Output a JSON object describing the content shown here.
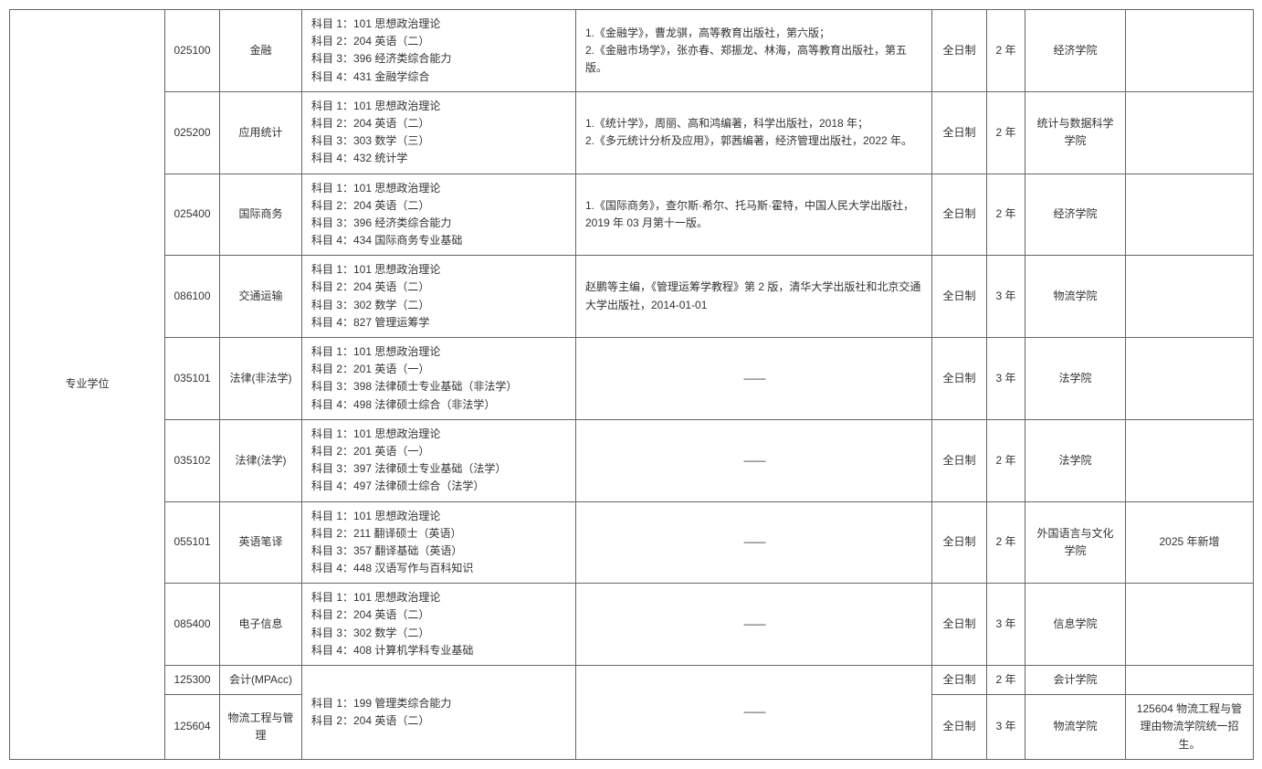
{
  "category_label": "专业学位",
  "rows": [
    {
      "code": "025100",
      "name": "金融",
      "subj1": "科目 1：101 思想政治理论",
      "subj2": "科目 2：204 英语（二）",
      "subj3": "科目 3：396 经济类综合能力",
      "subj4": "科目 4：431 金融学综合",
      "refs": "1.《金融学》，曹龙骐，高等教育出版社，第六版；\n2.《金融市场学》，张亦春、郑振龙、林海，高等教育出版社，第五版。",
      "refs_center": false,
      "mode": "全日制",
      "duration": "2 年",
      "dept": "经济学院",
      "note": ""
    },
    {
      "code": "025200",
      "name": "应用统计",
      "subj1": "科目 1：101 思想政治理论",
      "subj2": "科目 2：204 英语（二）",
      "subj3": "科目 3：303 数学（三）",
      "subj4": "科目 4：432 统计学",
      "refs": "1.《统计学》，周丽、高和鸿编著，科学出版社，2018 年；\n2.《多元统计分析及应用》，郭茜编著，经济管理出版社，2022 年。",
      "refs_center": false,
      "mode": "全日制",
      "duration": "2 年",
      "dept": "统计与数据科学学院",
      "note": ""
    },
    {
      "code": "025400",
      "name": "国际商务",
      "subj1": "科目 1：101 思想政治理论",
      "subj2": "科目 2：204 英语（二）",
      "subj3": "科目 3：396 经济类综合能力",
      "subj4": "科目 4：434 国际商务专业基础",
      "refs": "1.《国际商务》，查尔斯·希尔、托马斯·霍特，中国人民大学出版社，2019 年 03 月第十一版。",
      "refs_center": false,
      "mode": "全日制",
      "duration": "2 年",
      "dept": "经济学院",
      "note": ""
    },
    {
      "code": "086100",
      "name": "交通运输",
      "subj1": "科目 1：101 思想政治理论",
      "subj2": "科目 2：204 英语（二）",
      "subj3": "科目 3：302 数学（二）",
      "subj4": "科目 4：827 管理运筹学",
      "refs": "赵鹏等主编，《管理运筹学教程》第 2 版，清华大学出版社和北京交通大学出版社，2014-01-01",
      "refs_center": false,
      "mode": "全日制",
      "duration": "3 年",
      "dept": "物流学院",
      "note": ""
    },
    {
      "code": "035101",
      "name": "法律(非法学)",
      "subj1": "科目 1：101 思想政治理论",
      "subj2": "科目 2：201 英语（一）",
      "subj3": "科目 3：398 法律硕士专业基础（非法学）",
      "subj4": "科目 4：498 法律硕士综合（非法学）",
      "refs": "——",
      "refs_center": true,
      "mode": "全日制",
      "duration": "3 年",
      "dept": "法学院",
      "note": ""
    },
    {
      "code": "035102",
      "name": "法律(法学)",
      "subj1": "科目 1：101 思想政治理论",
      "subj2": "科目 2：201 英语（一）",
      "subj3": "科目 3：397 法律硕士专业基础（法学）",
      "subj4": "科目 4：497 法律硕士综合（法学）",
      "refs": "——",
      "refs_center": true,
      "mode": "全日制",
      "duration": "2 年",
      "dept": "法学院",
      "note": ""
    },
    {
      "code": "055101",
      "name": "英语笔译",
      "subj1": "科目 1：101 思想政治理论",
      "subj2": "科目 2：211 翻译硕士（英语）",
      "subj3": "科目 3：357 翻译基础（英语）",
      "subj4": "科目 4：448 汉语写作与百科知识",
      "refs": "——",
      "refs_center": true,
      "mode": "全日制",
      "duration": "2 年",
      "dept": "外国语言与文化学院",
      "note": "2025 年新增"
    },
    {
      "code": "085400",
      "name": "电子信息",
      "subj1": "科目 1：101 思想政治理论",
      "subj2": "科目 2：204 英语（二）",
      "subj3": "科目 3：302 数学（二）",
      "subj4": "科目 4：408 计算机学科专业基础",
      "refs": "——",
      "refs_center": true,
      "mode": "全日制",
      "duration": "3 年",
      "dept": "信息学院",
      "note": ""
    },
    {
      "code": "125300",
      "name": "会计(MPAcc)",
      "mode": "全日制",
      "duration": "2 年",
      "dept": "会计学院",
      "note": ""
    },
    {
      "code": "125604",
      "name": "物流工程与管理",
      "mode": "全日制",
      "duration": "3 年",
      "dept": "物流学院",
      "note": "125604 物流工程与管理由物流学院统一招生。"
    }
  ],
  "shared_subjects": {
    "subj1": "科目 1：199 管理类综合能力",
    "subj2": "科目 2：204 英语（二）",
    "refs": "——"
  }
}
